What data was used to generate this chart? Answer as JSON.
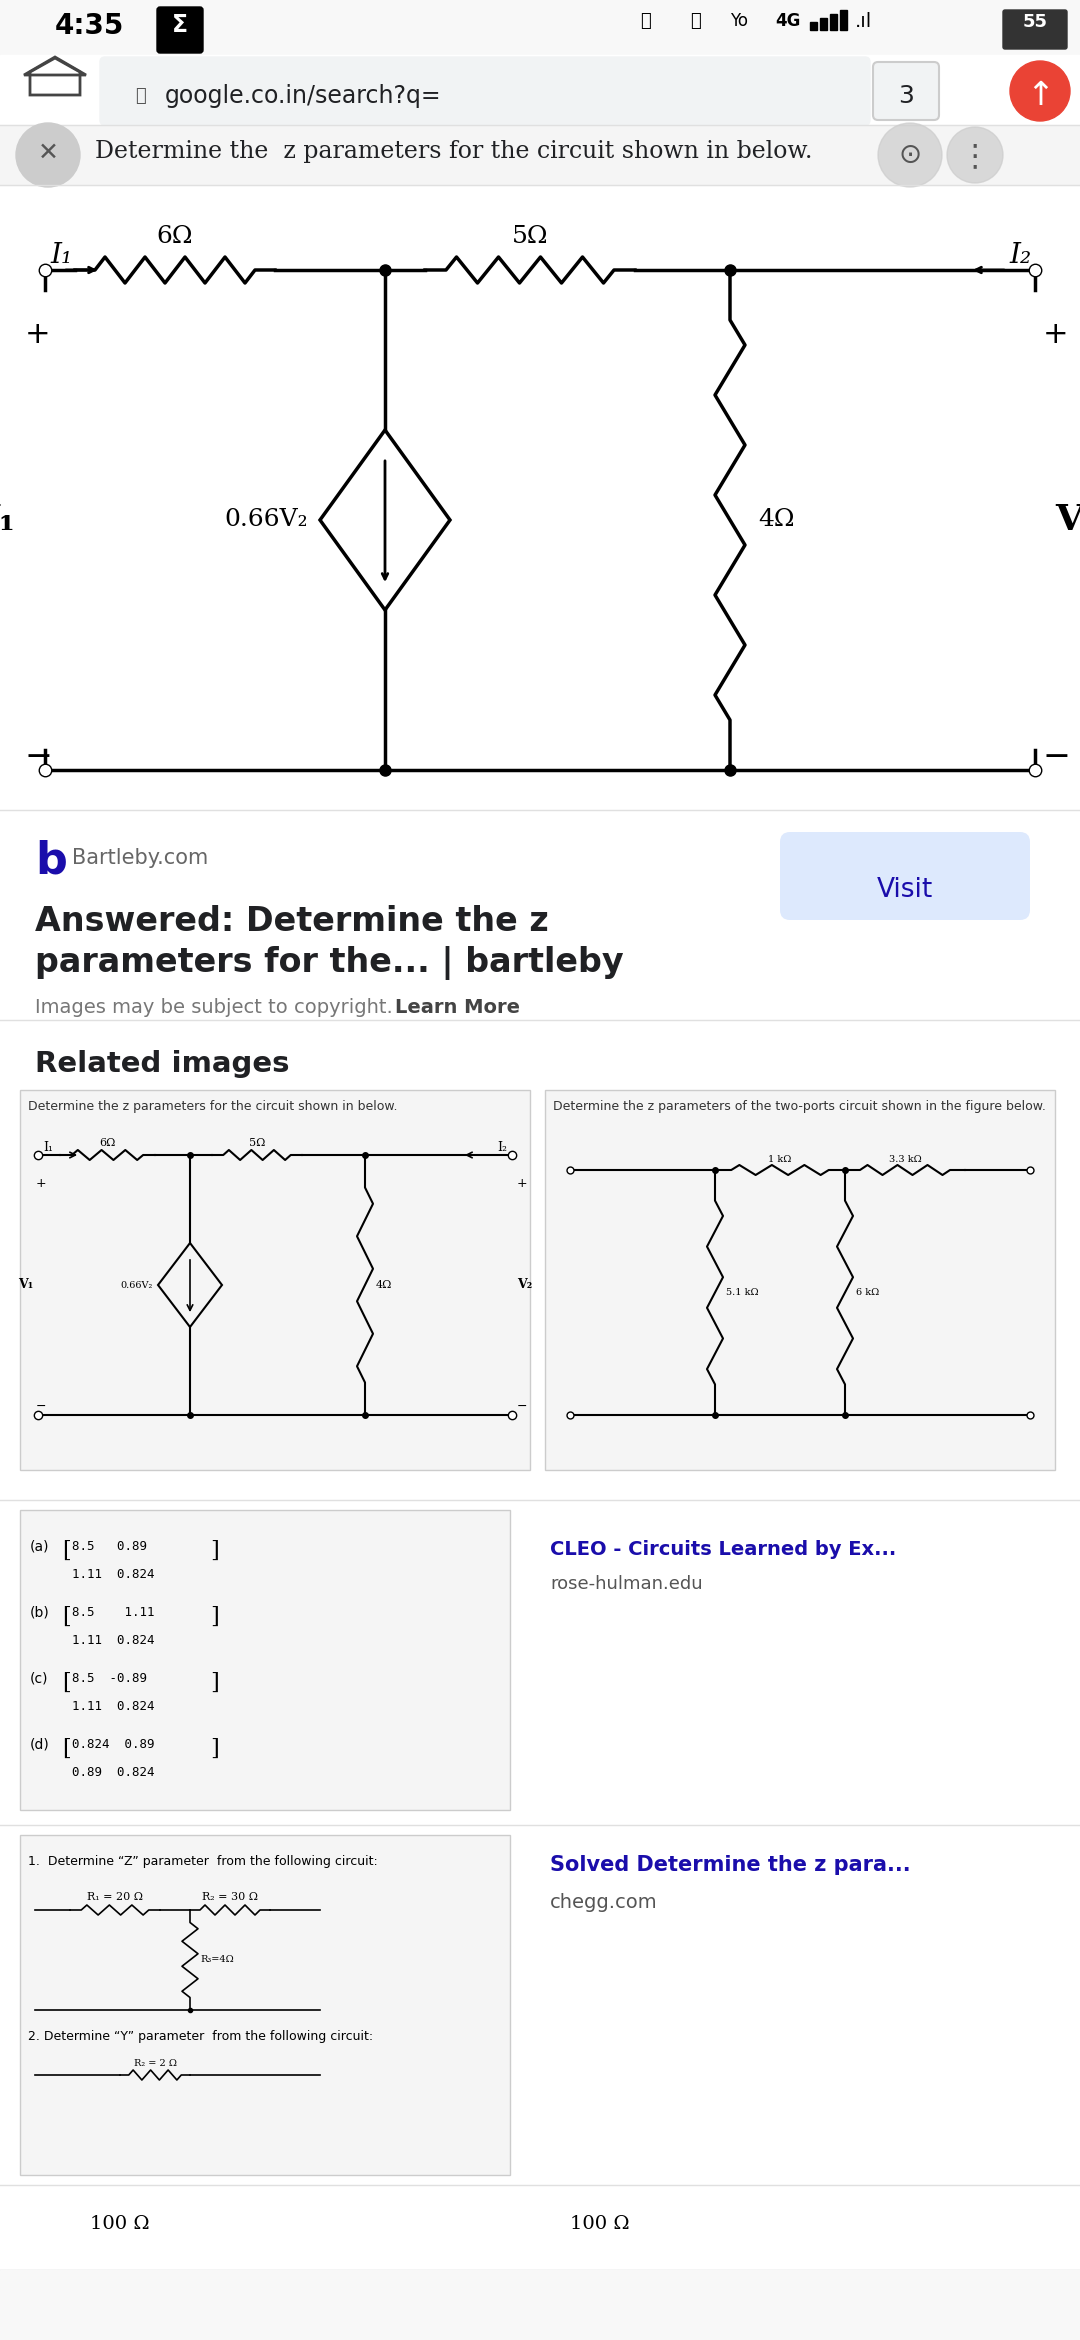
{
  "bg_color": "#ffffff",
  "status_bar_time": "4:35",
  "url_text": "google.co.in/search?q=",
  "badge_num": "3",
  "search_title": "Determine the  z parameters for the circuit shown in below.",
  "circuit_R1": "6Ω",
  "circuit_R2": "5Ω",
  "circuit_R3": "4Ω",
  "circuit_src": "0.66V₂",
  "circuit_I1": "I₁",
  "circuit_I2": "I₂",
  "circuit_V1": "V₁",
  "circuit_V2": "V₂",
  "bartleby_title1": "Answered: Determine the z",
  "bartleby_title2": "parameters for the... | bartleby",
  "bartleby_site": "Bartleby.com",
  "visit_label": "Visit",
  "copyright_text": "Images may be subject to copyright.",
  "learn_more": "Learn More",
  "related_images_title": "Related images",
  "thumb1_caption": "Determine the z parameters for the circuit shown in below.",
  "thumb2_caption": "Determine the z parameters of the two-ports circuit shown in the figure below.",
  "thumb2_R_labels": [
    "1 kΩ",
    "3.3 kΩ",
    "5.1 kΩ",
    "6 kΩ"
  ],
  "cleo_title": "CLEO - Circuits Learned by Ex...",
  "cleo_site": "rose-hulman.edu",
  "matrix_labels": [
    "(a)",
    "(b)",
    "(c)",
    "(d)"
  ],
  "matrix_rows": [
    [
      "8.5   0.89",
      "1.11  0.824"
    ],
    [
      "8.5    1.11",
      "1.11  0.824"
    ],
    [
      "8.5  -0.89",
      "1.11  0.824"
    ],
    [
      "0.824  0.89",
      "0.89  0.824"
    ]
  ],
  "chegg_title": "Solved Determine the z para...",
  "chegg_site": "chegg.com",
  "chegg_q1": "1.  Determine “Z” parameter  from the following circuit:",
  "chegg_q1_r1": "R₁ = 20 Ω",
  "chegg_q1_r2": "R₂ = 30 Ω",
  "chegg_q2": "2. Determine “Y” parameter  from the following circuit:",
  "chegg_q2_r": "R₂ = 2 Ω",
  "bottom_100ohm1": "100 Ω",
  "bottom_100ohm2": "100 Ω",
  "nav_icons": [
    "≡",
    "□",
    "◁"
  ]
}
